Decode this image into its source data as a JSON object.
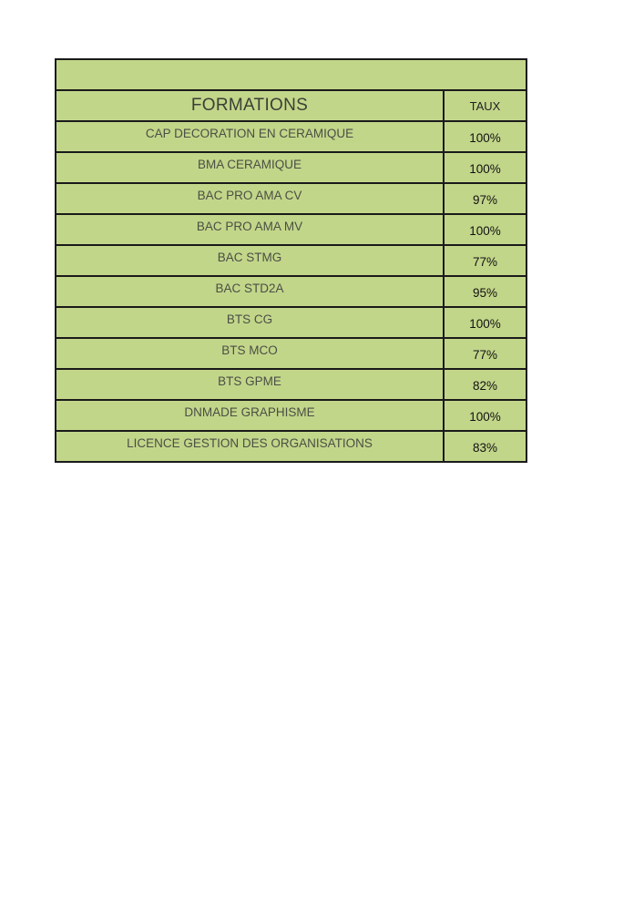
{
  "table": {
    "title": "",
    "headers": {
      "formations": "FORMATIONS",
      "taux": "TAUX"
    },
    "rows": [
      {
        "formation": "CAP DECORATION EN CERAMIQUE",
        "taux": "100%"
      },
      {
        "formation": "BMA CERAMIQUE",
        "taux": "100%"
      },
      {
        "formation": "BAC PRO AMA CV",
        "taux": "97%"
      },
      {
        "formation": "BAC PRO AMA MV",
        "taux": "100%"
      },
      {
        "formation": "BAC STMG",
        "taux": "77%"
      },
      {
        "formation": "BAC STD2A",
        "taux": "95%"
      },
      {
        "formation": "BTS CG",
        "taux": "100%"
      },
      {
        "formation": "BTS MCO",
        "taux": "77%"
      },
      {
        "formation": "BTS GPME",
        "taux": "82%"
      },
      {
        "formation": "DNMADE GRAPHISME",
        "taux": "100%"
      },
      {
        "formation": "LICENCE GESTION DES ORGANISATIONS",
        "taux": "83%"
      }
    ],
    "colors": {
      "fill": "#c2d68a",
      "border": "#1a1a1a"
    }
  }
}
